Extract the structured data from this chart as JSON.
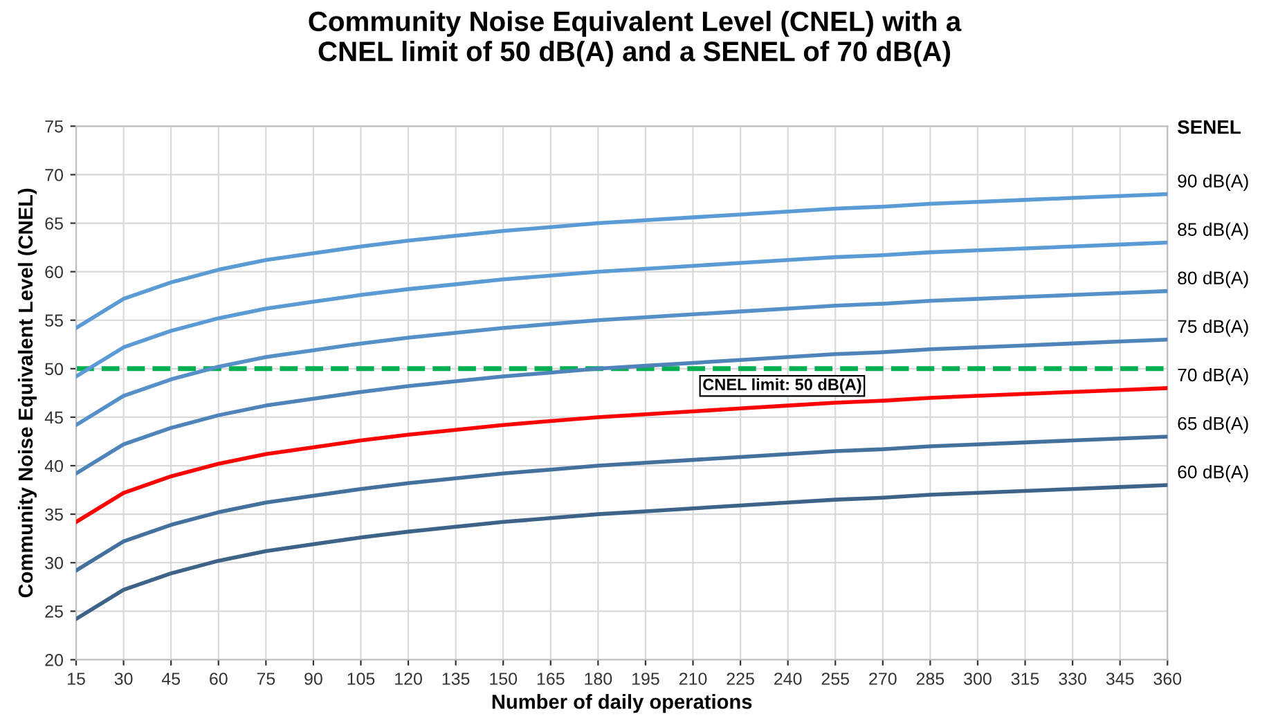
{
  "chart_data": {
    "type": "line",
    "title": "Community Noise Equivalent Level (CNEL) with a\nCNEL limit of 50 dB(A) and a SENEL of 70 dB(A)",
    "xlabel": "Number of daily operations",
    "ylabel": "Community Noise Equivalent Level (CNEL)",
    "legend_title": "SENEL",
    "legend": "right",
    "grid": true,
    "marker": "none",
    "line_style": "solid",
    "x": [
      15,
      30,
      45,
      60,
      75,
      90,
      105,
      120,
      135,
      150,
      165,
      180,
      195,
      210,
      225,
      240,
      255,
      270,
      285,
      300,
      315,
      330,
      345,
      360
    ],
    "xlim": [
      15,
      360
    ],
    "xticks": [
      15,
      30,
      45,
      60,
      75,
      90,
      105,
      120,
      135,
      150,
      165,
      180,
      195,
      210,
      225,
      240,
      255,
      270,
      285,
      300,
      315,
      330,
      345,
      360
    ],
    "ylim": [
      20,
      75
    ],
    "yticks": [
      20,
      25,
      30,
      35,
      40,
      45,
      50,
      55,
      60,
      65,
      70,
      75
    ],
    "series": [
      {
        "name": "90 dB(A)",
        "color": "#5b9bd5",
        "values": [
          54.2,
          57.2,
          58.9,
          60.2,
          61.2,
          61.9,
          62.6,
          63.2,
          63.7,
          64.2,
          64.6,
          65.0,
          65.3,
          65.6,
          65.9,
          66.2,
          66.5,
          66.7,
          67.0,
          67.2,
          67.4,
          67.6,
          67.8,
          68.0
        ]
      },
      {
        "name": "85 dB(A)",
        "color": "#5b9bd5",
        "values": [
          49.2,
          52.2,
          53.9,
          55.2,
          56.2,
          56.9,
          57.6,
          58.2,
          58.7,
          59.2,
          59.6,
          60.0,
          60.3,
          60.6,
          60.9,
          61.2,
          61.5,
          61.7,
          62.0,
          62.2,
          62.4,
          62.6,
          62.8,
          63.0
        ]
      },
      {
        "name": "80 dB(A)",
        "color": "#5590c8",
        "values": [
          44.2,
          47.2,
          48.9,
          50.2,
          51.2,
          51.9,
          52.6,
          53.2,
          53.7,
          54.2,
          54.6,
          55.0,
          55.3,
          55.6,
          55.9,
          56.2,
          56.5,
          56.7,
          57.0,
          57.2,
          57.4,
          57.6,
          57.8,
          58.0
        ]
      },
      {
        "name": "75 dB(A)",
        "color": "#4f84ba",
        "values": [
          39.2,
          42.2,
          43.9,
          45.2,
          46.2,
          46.9,
          47.6,
          48.2,
          48.7,
          49.2,
          49.6,
          50.0,
          50.3,
          50.6,
          50.9,
          51.2,
          51.5,
          51.7,
          52.0,
          52.2,
          52.4,
          52.6,
          52.8,
          53.0
        ]
      },
      {
        "name": "70 dB(A)",
        "color": "#ff0000",
        "values": [
          34.2,
          37.2,
          38.9,
          40.2,
          41.2,
          41.9,
          42.6,
          43.2,
          43.7,
          44.2,
          44.6,
          45.0,
          45.3,
          45.6,
          45.9,
          46.2,
          46.5,
          46.7,
          47.0,
          47.2,
          47.4,
          47.6,
          47.8,
          48.0
        ]
      },
      {
        "name": "65 dB(A)",
        "color": "#44709e",
        "values": [
          29.2,
          32.2,
          33.9,
          35.2,
          36.2,
          36.9,
          37.6,
          38.2,
          38.7,
          39.2,
          39.6,
          40.0,
          40.3,
          40.6,
          40.9,
          41.2,
          41.5,
          41.7,
          42.0,
          42.2,
          42.4,
          42.6,
          42.8,
          43.0
        ]
      },
      {
        "name": "60 dB(A)",
        "color": "#3d6388",
        "values": [
          24.2,
          27.2,
          28.9,
          30.2,
          31.2,
          31.9,
          32.6,
          33.2,
          33.7,
          34.2,
          34.6,
          35.0,
          35.3,
          35.6,
          35.9,
          36.2,
          36.5,
          36.7,
          37.0,
          37.2,
          37.4,
          37.6,
          37.8,
          38.0
        ]
      }
    ],
    "ref_lines": [
      {
        "axis": "y",
        "value": 50,
        "label": "CNEL limit: 50 dB(A)",
        "color": "#00b050",
        "line_style": "dashed"
      }
    ]
  }
}
